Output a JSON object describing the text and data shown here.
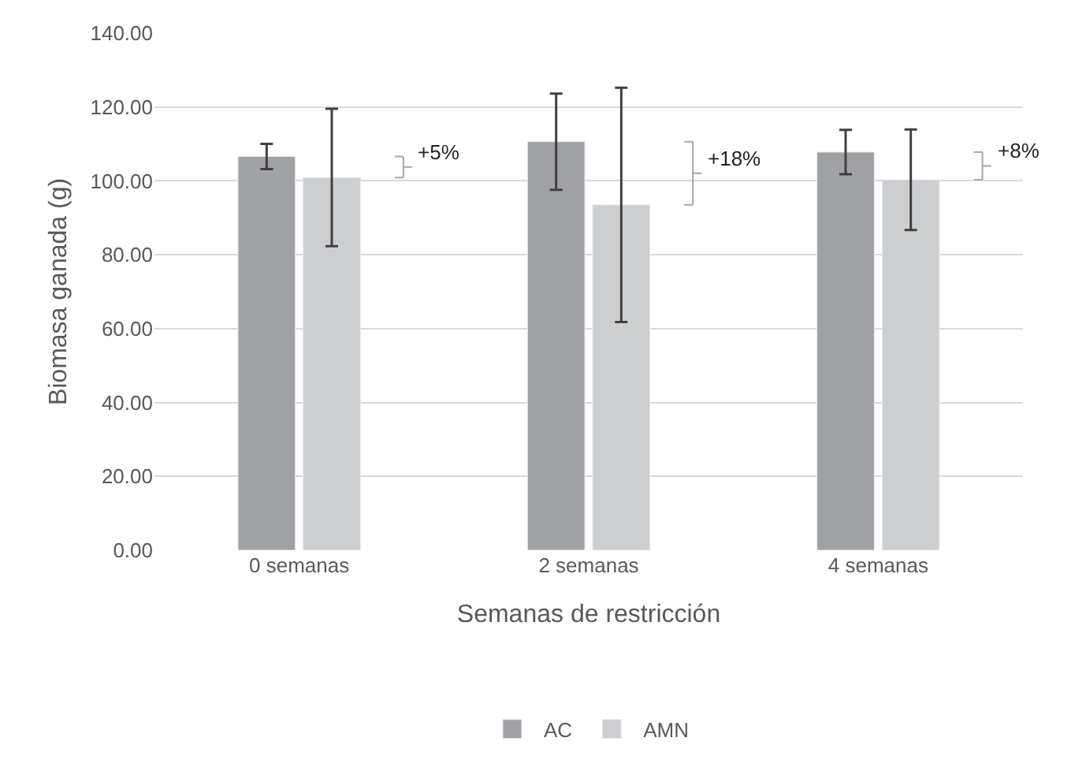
{
  "chart_data": {
    "type": "bar",
    "categories": [
      "0 semanas",
      "2 semanas",
      "4 semanas"
    ],
    "series": [
      {
        "name": "AC",
        "color": "#a0a1a4",
        "values": [
          106.6,
          110.6,
          107.8
        ],
        "errors": [
          3.4,
          13,
          6
        ]
      },
      {
        "name": "AMN",
        "color": "#cdcecf",
        "values": [
          100.9,
          93.5,
          100.3
        ],
        "errors": [
          18.6,
          31.7,
          13.6
        ]
      }
    ],
    "xlabel": "Semanas de restricción",
    "ylabel": "Biomasa ganada (g)",
    "ylim": [
      0,
      140
    ],
    "yticks": [
      {
        "value": 0,
        "label": "0.00"
      },
      {
        "value": 20,
        "label": "20.00"
      },
      {
        "value": 40,
        "label": "40.00"
      },
      {
        "value": 60,
        "label": "60.00"
      },
      {
        "value": 80,
        "label": "80.00"
      },
      {
        "value": 100,
        "label": "100.00"
      },
      {
        "value": 120,
        "label": "120.00"
      },
      {
        "value": 140,
        "label": "140.00"
      }
    ],
    "annotations": [
      "+5%",
      "+18%",
      "+8%"
    ],
    "grid": "y",
    "legend": "bottom"
  }
}
